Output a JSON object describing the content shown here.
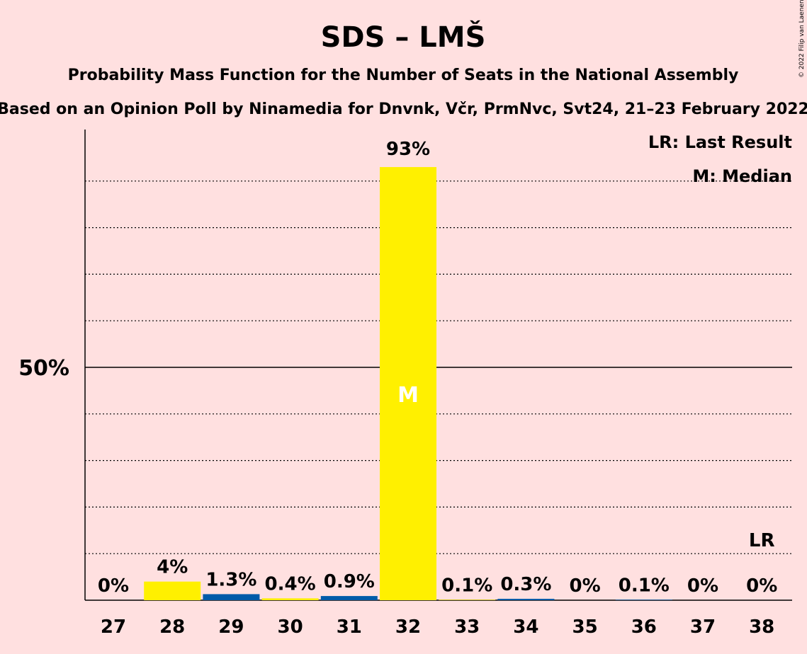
{
  "chart_data": {
    "type": "bar",
    "title": "SDS – LMŠ",
    "subtitle": "Probability Mass Function for the Number of Seats in the National Assembly",
    "source": "Based on an Opinion Poll by Ninamedia for Dnvnk, Včr, PrmNvc, Svt24, 21–23 February 2022",
    "copyright": "© 2022 Filip van Laenen",
    "legend": {
      "lr": "LR: Last Result",
      "median": "M: Median",
      "placement": "top-right"
    },
    "ylim": [
      0,
      100
    ],
    "yticks": [
      {
        "value": 50,
        "label": "50%"
      }
    ],
    "gridlines": [
      10,
      20,
      30,
      40,
      60,
      70,
      80,
      90
    ],
    "categories": [
      "27",
      "28",
      "29",
      "30",
      "31",
      "32",
      "33",
      "34",
      "35",
      "36",
      "37",
      "38"
    ],
    "values": [
      0,
      4,
      1.3,
      0.4,
      0.9,
      93,
      0.1,
      0.3,
      0,
      0.1,
      0,
      0
    ],
    "labels": [
      "0%",
      "4%",
      "1.3%",
      "0.4%",
      "0.9%",
      "93%",
      "0.1%",
      "0.3%",
      "0%",
      "0.1%",
      "0%",
      "0%"
    ],
    "bar_colors": [
      "#FFF000",
      "#FFF000",
      "#005BA9",
      "#FFF000",
      "#005BA9",
      "#FFF000",
      "#FFF000",
      "#005BA9",
      "#FFF000",
      "#005BA9",
      "#FFF000",
      "#FFF000"
    ],
    "median_category": "32",
    "median_mark": "M",
    "last_result_category": "38",
    "last_result_mark": "LR"
  }
}
